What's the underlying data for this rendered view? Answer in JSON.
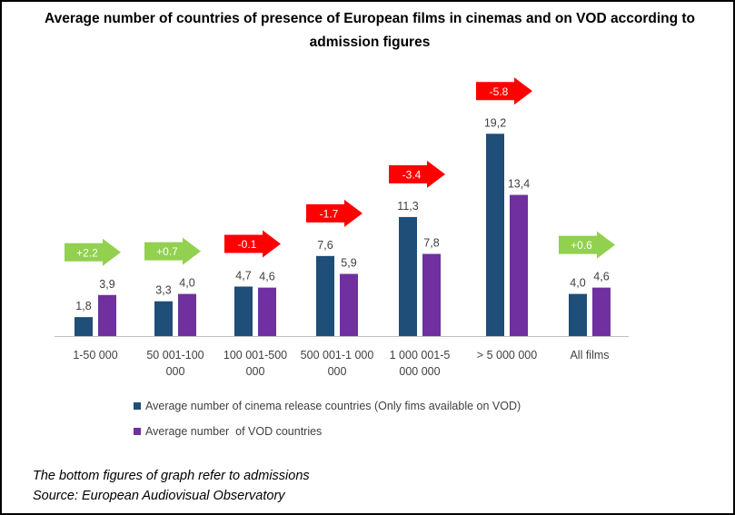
{
  "chart_data": {
    "type": "bar",
    "title": "Average number of countries of presence of European films in cinemas and on VOD according to admission figures",
    "categories": [
      [
        "1-50 000"
      ],
      [
        "50 001-100",
        "000"
      ],
      [
        "100 001-500",
        "000"
      ],
      [
        "500 001-1 000",
        "000"
      ],
      [
        "1 000 001-5",
        "000 000"
      ],
      [
        "> 5 000 000"
      ],
      [
        "All films"
      ]
    ],
    "series": [
      {
        "name": "Average number of cinema release countries (Only fims available on VOD)",
        "values": [
          1.8,
          3.3,
          4.7,
          7.6,
          11.3,
          19.2,
          4.0
        ],
        "labels": [
          "1,8",
          "3,3",
          "4,7",
          "7,6",
          "11,3",
          "19,2",
          "4,0"
        ],
        "color": "#1f4e79"
      },
      {
        "name": "Average number  of VOD countries",
        "values": [
          3.9,
          4.0,
          4.6,
          5.9,
          7.8,
          13.4,
          4.6
        ],
        "labels": [
          "3,9",
          "4,0",
          "4,6",
          "5,9",
          "7,8",
          "13,4",
          "4,6"
        ],
        "color": "#7030a0"
      }
    ],
    "differences": [
      {
        "label": "+2.2",
        "color": "#92d050"
      },
      {
        "label": "+0.7",
        "color": "#92d050"
      },
      {
        "label": "-0.1",
        "color": "#ff0000"
      },
      {
        "label": "-1.7",
        "color": "#ff0000"
      },
      {
        "label": "-3.4",
        "color": "#ff0000"
      },
      {
        "label": "-5.8",
        "color": "#ff0000"
      },
      {
        "label": "+0.6",
        "color": "#92d050"
      }
    ],
    "ylim": [
      0,
      20
    ],
    "grid": false,
    "legend_position": "bottom"
  },
  "notes": {
    "line1": "The bottom figures of graph refer to admissions",
    "line2": "Source: European Audiovisual Observatory"
  }
}
